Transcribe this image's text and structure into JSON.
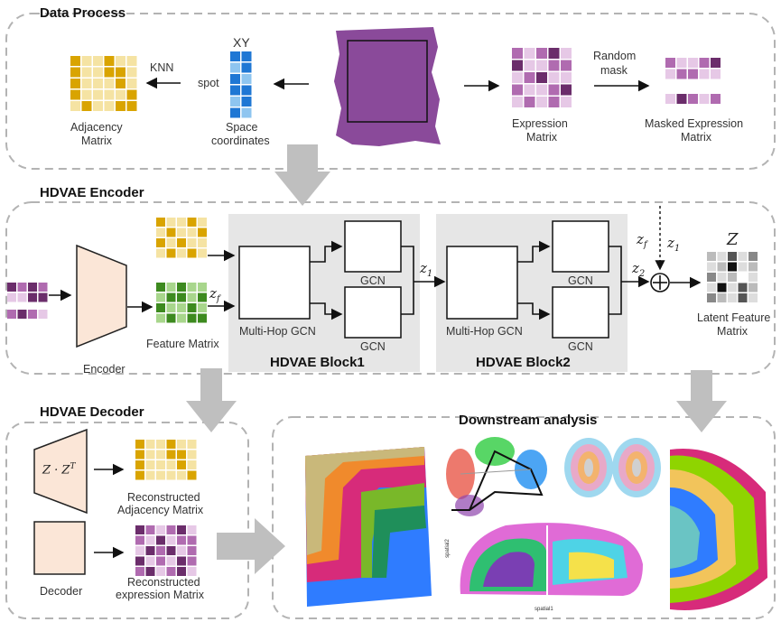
{
  "sections": {
    "data_process": "Data Process",
    "encoder": "HDVAE Encoder",
    "decoder": "HDVAE Decoder",
    "downstream": "Downstream analysis"
  },
  "labels": {
    "xy": "XY",
    "spot": "spot",
    "space_coords_1": "Space",
    "space_coords_2": "coordinates",
    "knn": "KNN",
    "adjacency_1": "Adjacency",
    "adjacency_2": "Matrix",
    "expression_1": "Expression",
    "expression_2": "Matrix",
    "random_mask_1": "Random",
    "random_mask_2": "mask",
    "masked_1": "Masked Expression",
    "masked_2": "Matrix",
    "encoder": "Encoder",
    "feature_matrix": "Feature Matrix",
    "multihop_1": "Multi-Hop GCN",
    "multihop_2": "Multi-Hop GCN",
    "gcn_1a": "GCN",
    "gcn_1b": "GCN",
    "gcn_2a": "GCN",
    "gcn_2b": "GCN",
    "block1": "HDVAE Block1",
    "block2": "HDVAE Block2",
    "latent_1": "Latent Feature",
    "latent_2": "Matrix",
    "recon_adj_1": "Reconstructed",
    "recon_adj_2": "Adjacency Matrix",
    "recon_exp_1": "Reconstructed",
    "recon_exp_2": "expression Matrix",
    "decoder": "Decoder",
    "spatial1": "spatial1",
    "spatial2": "spatial2"
  },
  "math": {
    "z": "z",
    "f": "f",
    "one": "1",
    "two": "2",
    "Z": "Z",
    "zzt": "Z · Z",
    "T": "T",
    "plus": "+"
  },
  "colors": {
    "section_border": "#b3b3b3",
    "block_fill": "#e6e6e6",
    "arrow_gray": "#bfbfbf",
    "yellow_dark": "#d9a400",
    "yellow_light": "#f5e3a3",
    "blue_dark": "#1f77d4",
    "blue_light": "#8ec5f0",
    "purple_dark": "#6b2d6b",
    "purple_mid": "#b06bb0",
    "purple_light": "#e6c8e6",
    "green_dark": "#3d8a1f",
    "green_light": "#a8d68c",
    "tissue": "#8a4a9a",
    "decoder_fill": "#fbe6d7"
  }
}
